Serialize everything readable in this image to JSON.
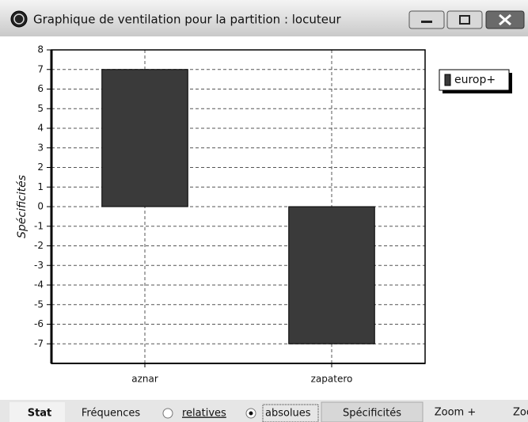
{
  "window": {
    "title": "Graphique de ventilation pour la partition : locuteur"
  },
  "toolbar": {
    "tab": "Stat",
    "frequencies": "Fréquences",
    "relative": "relatives",
    "absolute": "absolues",
    "specificities": "Spécificités",
    "zoom_in": "Zoom +",
    "zoom_out": "Zoom -"
  },
  "chart_data": {
    "type": "bar",
    "ylabel": "Spécificités",
    "categories": [
      "aznar",
      "zapatero"
    ],
    "series": [
      {
        "name": "europ+",
        "color": "#3a3a3a",
        "values": [
          7,
          -7
        ]
      }
    ],
    "ylim": [
      -8,
      8
    ],
    "yticks": [
      -7,
      -6,
      -5,
      -4,
      -3,
      -2,
      -1,
      0,
      1,
      2,
      3,
      4,
      5,
      6,
      7,
      8
    ],
    "grid": true,
    "legend": "top-right"
  }
}
